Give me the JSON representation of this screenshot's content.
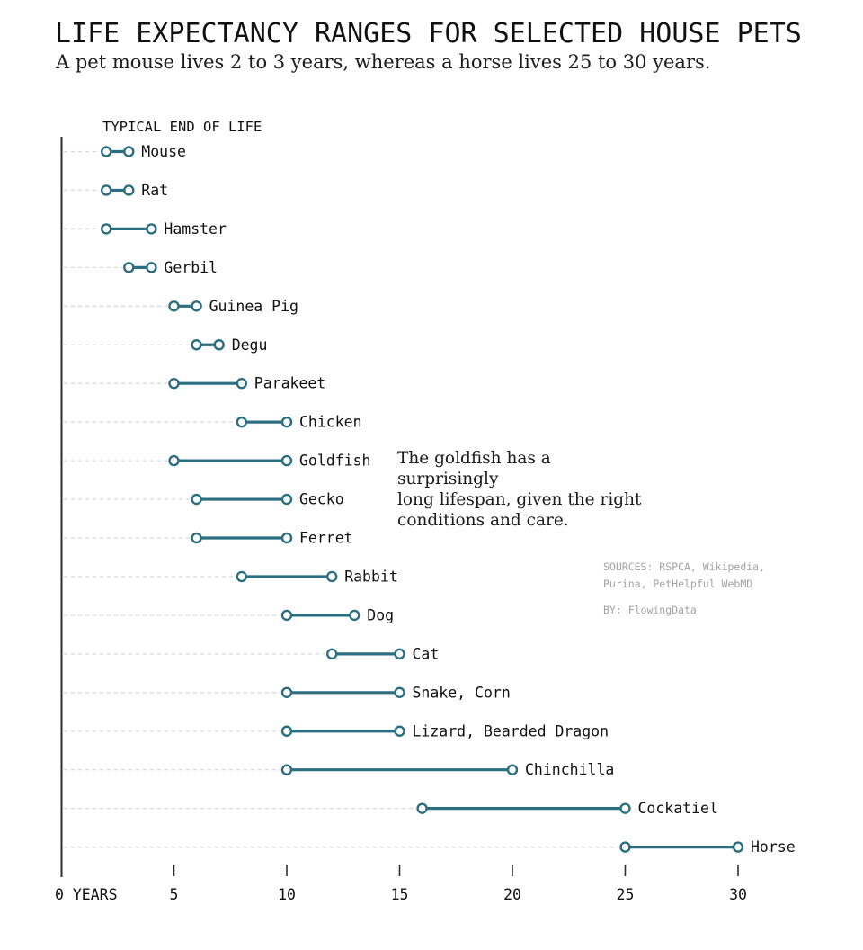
{
  "header": {
    "title": "LIFE EXPECTANCY RANGES FOR SELECTED HOUSE PETS",
    "subtitle": "A pet mouse lives 2 to 3 years, whereas a horse lives 25 to 30 years."
  },
  "chart_data": {
    "type": "dumbbell-range",
    "title": "LIFE EXPECTANCY RANGES FOR SELECTED HOUSE PETS",
    "subtitle": "A pet mouse lives 2 to 3 years, whereas a horse lives 25 to 30 years.",
    "column_header": "TYPICAL END OF LIFE",
    "unit": "years",
    "x_axis": {
      "zero_label": "0 YEARS",
      "ticks": [
        5,
        10,
        15,
        20,
        25,
        30
      ],
      "range": [
        0,
        32
      ],
      "grid": "dashed-horizontal-leaders"
    },
    "pets": [
      {
        "name": "Mouse",
        "min": 2,
        "max": 3
      },
      {
        "name": "Rat",
        "min": 2,
        "max": 3
      },
      {
        "name": "Hamster",
        "min": 2,
        "max": 4
      },
      {
        "name": "Gerbil",
        "min": 3,
        "max": 4
      },
      {
        "name": "Guinea Pig",
        "min": 5,
        "max": 6
      },
      {
        "name": "Degu",
        "min": 6,
        "max": 7
      },
      {
        "name": "Parakeet",
        "min": 5,
        "max": 8
      },
      {
        "name": "Chicken",
        "min": 8,
        "max": 10
      },
      {
        "name": "Goldfish",
        "min": 5,
        "max": 10
      },
      {
        "name": "Gecko",
        "min": 6,
        "max": 10
      },
      {
        "name": "Ferret",
        "min": 6,
        "max": 10
      },
      {
        "name": "Rabbit",
        "min": 8,
        "max": 12
      },
      {
        "name": "Dog",
        "min": 10,
        "max": 13
      },
      {
        "name": "Cat",
        "min": 12,
        "max": 15
      },
      {
        "name": "Snake, Corn",
        "min": 10,
        "max": 15
      },
      {
        "name": "Lizard, Bearded Dragon",
        "min": 10,
        "max": 15
      },
      {
        "name": "Chinchilla",
        "min": 10,
        "max": 20
      },
      {
        "name": "Cockatiel",
        "min": 16,
        "max": 25
      },
      {
        "name": "Horse",
        "min": 25,
        "max": 30
      }
    ],
    "annotation_lines": [
      "The goldfish has a surprisingly",
      "long lifespan, given the right",
      "conditions and care."
    ],
    "colors": {
      "range": "#2b6e80",
      "dot_fill": "#ffffff",
      "grid": "#d8d8d8",
      "axis": "#2e2e2e",
      "label": "#111111",
      "source_text": "#a3a3a3"
    },
    "legend_position": "none"
  },
  "footer": {
    "sources_lines": [
      "SOURCES: RSPCA, Wikipedia,",
      "Purina, PetHelpful WebMD"
    ],
    "byline": "BY: FlowingData"
  }
}
